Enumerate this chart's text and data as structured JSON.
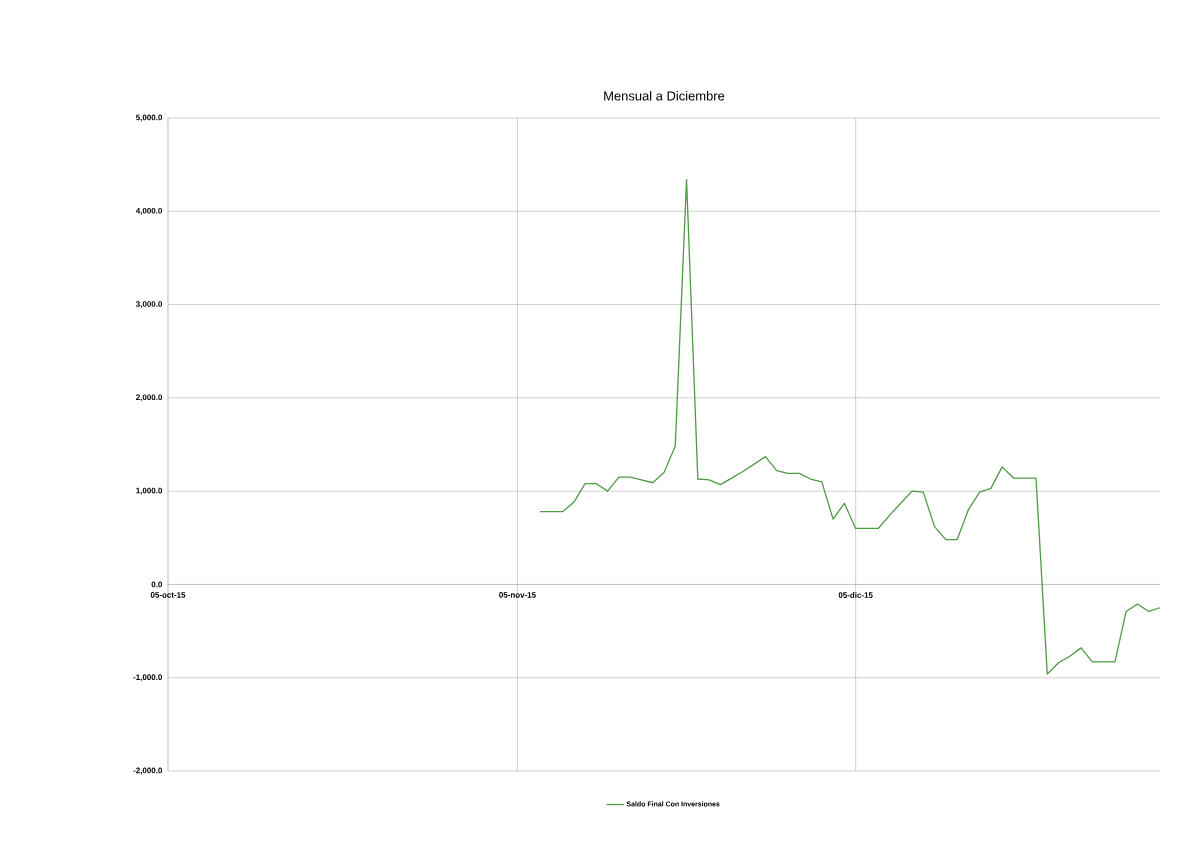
{
  "chart_data": {
    "type": "line",
    "title": "Mensual a Diciembre",
    "x": [
      "2015-11-07",
      "2015-11-08",
      "2015-11-09",
      "2015-11-10",
      "2015-11-11",
      "2015-11-12",
      "2015-11-13",
      "2015-11-14",
      "2015-11-15",
      "2015-11-16",
      "2015-11-17",
      "2015-11-18",
      "2015-11-19",
      "2015-11-20",
      "2015-11-21",
      "2015-11-22",
      "2015-11-23",
      "2015-11-24",
      "2015-11-25",
      "2015-11-26",
      "2015-11-27",
      "2015-11-28",
      "2015-11-29",
      "2015-11-30",
      "2015-12-01",
      "2015-12-02",
      "2015-12-03",
      "2015-12-04",
      "2015-12-05",
      "2015-12-06",
      "2015-12-07",
      "2015-12-08",
      "2015-12-09",
      "2015-12-10",
      "2015-12-11",
      "2015-12-12",
      "2015-12-13",
      "2015-12-14",
      "2015-12-15",
      "2015-12-16",
      "2015-12-17",
      "2015-12-18",
      "2015-12-19",
      "2015-12-20",
      "2015-12-21",
      "2015-12-22",
      "2015-12-23",
      "2015-12-24",
      "2015-12-25",
      "2015-12-26",
      "2015-12-27",
      "2015-12-28",
      "2015-12-29",
      "2015-12-30",
      "2015-12-31",
      "2016-01-01"
    ],
    "series": [
      {
        "name": "Saldo Final Con Inversiones",
        "color": "#4f9a45",
        "values": [
          780,
          780,
          780,
          880,
          1080,
          1080,
          1000,
          1150,
          1150,
          1120,
          1090,
          1200,
          1480,
          4340,
          1130,
          1120,
          1070,
          1140,
          1210,
          1290,
          1370,
          1220,
          1190,
          1190,
          1130,
          1100,
          700,
          870,
          600,
          600,
          600,
          740,
          870,
          1000,
          990,
          620,
          480,
          480,
          800,
          990,
          1030,
          1260,
          1140,
          1140,
          1140,
          -960,
          -840,
          -770,
          -680,
          -830,
          -830,
          -830,
          -290,
          -210,
          -290,
          -250
        ]
      }
    ],
    "xlim": [
      "2015-10-05",
      "2016-01-01"
    ],
    "xticks": [
      {
        "value": "2015-10-05",
        "label": "05-oct-15"
      },
      {
        "value": "2015-11-05",
        "label": "05-nov-15"
      },
      {
        "value": "2015-12-05",
        "label": "05-dic-15"
      }
    ],
    "ylim": [
      -2000,
      5000
    ],
    "yticks": [
      {
        "value": -2000,
        "label": "-2,000.0"
      },
      {
        "value": -1000,
        "label": "-1,000.0"
      },
      {
        "value": 0,
        "label": "0.0"
      },
      {
        "value": 1000,
        "label": "1,000.0"
      },
      {
        "value": 2000,
        "label": "2,000.0"
      },
      {
        "value": 3000,
        "label": "3,000.0"
      },
      {
        "value": 4000,
        "label": "4,000.0"
      },
      {
        "value": 5000,
        "label": "5,000.0"
      }
    ],
    "grid": true,
    "legend": "bottom",
    "marker": "none",
    "line_style": "solid"
  }
}
